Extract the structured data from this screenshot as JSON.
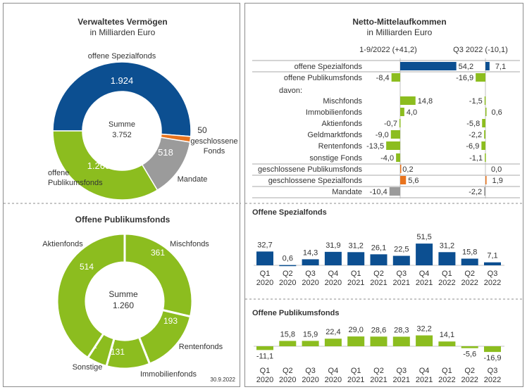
{
  "colors": {
    "blue": "#0c4f91",
    "green": "#8cbd1f",
    "gray": "#9b9b9b",
    "orange": "#e8731d",
    "text": "#333333",
    "line": "#8c8c8c"
  },
  "date_note": "30.9.2022",
  "chart_data": [
    {
      "type": "pie",
      "title": "Verwaltetes Vermögen",
      "subtitle": "in Milliarden Euro",
      "center_label": "Summe",
      "center_value": "3.752",
      "slices": [
        {
          "label": "offene Spezialfonds",
          "value": 1924,
          "value_label": "1.924",
          "color": "#0c4f91"
        },
        {
          "label": "geschlossene Fonds",
          "value": 50,
          "value_label": "50",
          "color": "#e8731d"
        },
        {
          "label": "Mandate",
          "value": 518,
          "value_label": "518",
          "color": "#9b9b9b"
        },
        {
          "label": "offene Publikumsfonds",
          "value": 1260,
          "value_label": "1.260",
          "color": "#8cbd1f"
        }
      ]
    },
    {
      "type": "pie",
      "title": "Offene Publikumsfonds",
      "center_label": "Summe",
      "center_value": "1.260",
      "slices": [
        {
          "label": "Mischfonds",
          "value": 361,
          "value_label": "361",
          "color": "#8cbd1f"
        },
        {
          "label": "Rentenfonds",
          "value": 193,
          "value_label": "193",
          "color": "#8cbd1f"
        },
        {
          "label": "Immobilienfonds",
          "value": 131,
          "value_label": "131",
          "color": "#8cbd1f"
        },
        {
          "label": "Sonstige",
          "value": 61,
          "value_label": "61",
          "color": "#8cbd1f"
        },
        {
          "label": "Aktienfonds",
          "value": 514,
          "value_label": "514",
          "color": "#8cbd1f"
        }
      ]
    },
    {
      "type": "bar",
      "title": "Netto-Mittelaufkommen",
      "subtitle": "in Milliarden Euro",
      "column_headers": [
        "1-9/2022 (+41,2)",
        "Q3 2022 (-10,1)"
      ],
      "davon_label": "davon:",
      "rows": [
        {
          "label": "offene Spezialfonds",
          "ytd": 54.2,
          "ytd_label": "54,2",
          "q3": 7.1,
          "q3_label": "7,1",
          "color": "#0c4f91"
        },
        {
          "label": "offene Publikumsfonds",
          "ytd": -8.4,
          "ytd_label": "-8,4",
          "q3": -16.9,
          "q3_label": "-16,9",
          "color": "#8cbd1f"
        },
        {
          "label": "Mischfonds",
          "ytd": 14.8,
          "ytd_label": "14,8",
          "q3": -1.5,
          "q3_label": "-1,5",
          "color": "#8cbd1f"
        },
        {
          "label": "Immobilienfonds",
          "ytd": 4.0,
          "ytd_label": "4,0",
          "q3": 0.6,
          "q3_label": "0,6",
          "color": "#8cbd1f"
        },
        {
          "label": "Aktienfonds",
          "ytd": -0.7,
          "ytd_label": "-0,7",
          "q3": -5.8,
          "q3_label": "-5,8",
          "color": "#8cbd1f"
        },
        {
          "label": "Geldmarktfonds",
          "ytd": -9.0,
          "ytd_label": "-9,0",
          "q3": -2.2,
          "q3_label": "-2,2",
          "color": "#8cbd1f"
        },
        {
          "label": "Rentenfonds",
          "ytd": -13.5,
          "ytd_label": "-13,5",
          "q3": -6.9,
          "q3_label": "-6,9",
          "color": "#8cbd1f"
        },
        {
          "label": "sonstige Fonds",
          "ytd": -4.0,
          "ytd_label": "-4,0",
          "q3": -1.1,
          "q3_label": "-1,1",
          "color": "#8cbd1f"
        },
        {
          "label": "geschlossene Publikumsfonds",
          "ytd": 0.2,
          "ytd_label": "0,2",
          "q3": 0.0,
          "q3_label": "0,0",
          "color": "#e8731d"
        },
        {
          "label": "geschlossene Spezialfonds",
          "ytd": 5.6,
          "ytd_label": "5,6",
          "q3": 1.9,
          "q3_label": "1,9",
          "color": "#e8731d"
        },
        {
          "label": "Mandate",
          "ytd": -10.4,
          "ytd_label": "-10,4",
          "q3": -2.2,
          "q3_label": "-2,2",
          "color": "#9b9b9b"
        }
      ]
    },
    {
      "type": "bar",
      "title": "Offene Spezialfonds",
      "categories": [
        [
          "Q1",
          "2020"
        ],
        [
          "Q2",
          "2020"
        ],
        [
          "Q3",
          "2020"
        ],
        [
          "Q4",
          "2020"
        ],
        [
          "Q1",
          "2021"
        ],
        [
          "Q2",
          "2021"
        ],
        [
          "Q3",
          "2021"
        ],
        [
          "Q4",
          "2021"
        ],
        [
          "Q1",
          "2022"
        ],
        [
          "Q2",
          "2022"
        ],
        [
          "Q3",
          "2022"
        ]
      ],
      "values": [
        32.7,
        0.6,
        14.3,
        31.9,
        31.2,
        26.1,
        22.5,
        51.5,
        31.2,
        15.8,
        7.1
      ],
      "value_labels": [
        "32,7",
        "0,6",
        "14,3",
        "31,9",
        "31,2",
        "26,1",
        "22,5",
        "51,5",
        "31,2",
        "15,8",
        "7,1"
      ],
      "color": "#0c4f91"
    },
    {
      "type": "bar",
      "title": "Offene Publikumsfonds",
      "categories": [
        [
          "Q1",
          "2020"
        ],
        [
          "Q2",
          "2020"
        ],
        [
          "Q3",
          "2020"
        ],
        [
          "Q4",
          "2020"
        ],
        [
          "Q1",
          "2021"
        ],
        [
          "Q2",
          "2021"
        ],
        [
          "Q3",
          "2021"
        ],
        [
          "Q4",
          "2021"
        ],
        [
          "Q1",
          "2022"
        ],
        [
          "Q2",
          "2022"
        ],
        [
          "Q3",
          "2022"
        ]
      ],
      "values": [
        -11.1,
        15.8,
        15.9,
        22.4,
        29.0,
        28.6,
        28.3,
        32.2,
        14.1,
        -5.6,
        -16.9
      ],
      "value_labels": [
        "-11,1",
        "15,8",
        "15,9",
        "22,4",
        "29,0",
        "28,6",
        "28,3",
        "32,2",
        "14,1",
        "-5,6",
        "-16,9"
      ],
      "color": "#8cbd1f"
    }
  ]
}
